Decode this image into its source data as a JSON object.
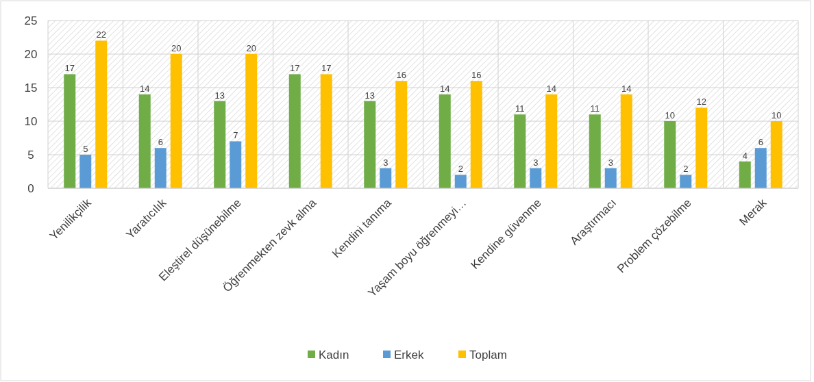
{
  "chart_data": {
    "type": "bar",
    "categories": [
      "Yenilikçilik",
      "Yaratıcılık",
      "Eleştirel düşünebilme",
      "Öğrenmekten zevk alma",
      "Kendini tanıma",
      "Yaşam boyu öğrenmeyi…",
      "Kendine güvenme",
      "Araştırmacı",
      "Problem çözebilme",
      "Merak"
    ],
    "series": [
      {
        "name": "Kadın",
        "color": "#70ad47",
        "values": [
          17,
          14,
          13,
          17,
          13,
          14,
          11,
          11,
          10,
          4
        ]
      },
      {
        "name": "Erkek",
        "color": "#5b9bd5",
        "values": [
          5,
          6,
          7,
          null,
          3,
          2,
          3,
          3,
          2,
          6
        ]
      },
      {
        "name": "Toplam",
        "color": "#ffc000",
        "values": [
          22,
          20,
          20,
          17,
          16,
          16,
          14,
          14,
          12,
          10
        ]
      }
    ],
    "ylim": [
      0,
      25
    ],
    "yticks": [
      0,
      5,
      10,
      15,
      20,
      25
    ],
    "grid": true,
    "legend": "bottom",
    "data_labels": true
  }
}
